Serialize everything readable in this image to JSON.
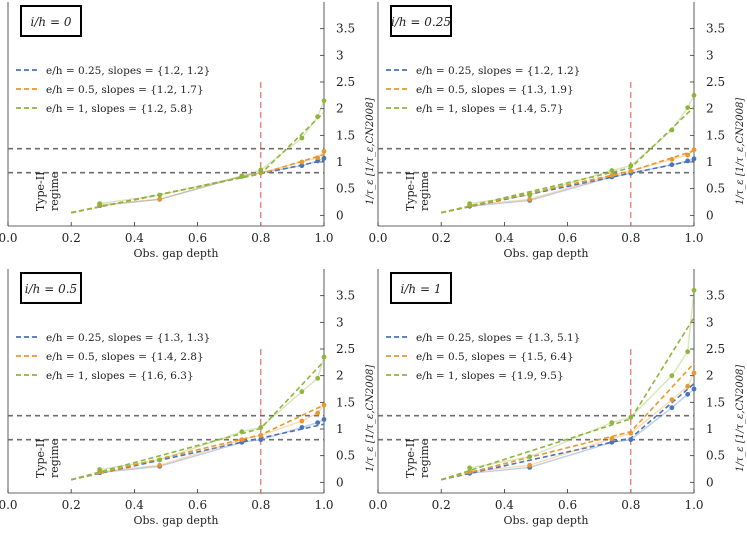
{
  "chart_data": [
    {
      "type": "line",
      "title": "i/h = 0",
      "xlabel": "Obs. gap depth",
      "ylabel": "1/τ_ε [1/τ_ε,CN2008]",
      "xlim": [
        0.0,
        1.0
      ],
      "ylim": [
        -0.2,
        4.0
      ],
      "xticks": [
        "0.0",
        "0.2",
        "0.4",
        "0.6",
        "0.8",
        "1.0"
      ],
      "yticks": [
        "0",
        "0.5",
        "1",
        "1.5",
        "2",
        "2.5",
        "3",
        "3.5"
      ],
      "regime_label": [
        "Type-II",
        "regime"
      ],
      "threshold_lines": [
        0.8,
        1.25
      ],
      "vertical_line": 0.8,
      "series": [
        {
          "name": "e/h = 0.25, slopes = {1.2, 1.2}",
          "color": "#4a74b8",
          "fit": [
            [
              0.2,
              0.05
            ],
            [
              0.8,
              0.78
            ],
            [
              1.0,
              1.03
            ]
          ],
          "points": [
            [
              0.29,
              0.18
            ],
            [
              0.48,
              0.3
            ],
            [
              0.74,
              0.73
            ],
            [
              0.8,
              0.8
            ],
            [
              0.93,
              0.93
            ],
            [
              0.98,
              1.02
            ],
            [
              1.0,
              1.07
            ]
          ]
        },
        {
          "name": "e/h = 0.5, slopes = {1.2, 1.7}",
          "color": "#e8982d",
          "fit": [
            [
              0.2,
              0.05
            ],
            [
              0.8,
              0.78
            ],
            [
              1.0,
              1.14
            ]
          ],
          "points": [
            [
              0.29,
              0.2
            ],
            [
              0.48,
              0.3
            ],
            [
              0.74,
              0.74
            ],
            [
              0.8,
              0.8
            ],
            [
              0.93,
              1.0
            ],
            [
              0.98,
              1.08
            ],
            [
              1.0,
              1.2
            ]
          ]
        },
        {
          "name": "e/h = 1, slopes = {1.2, 5.8}",
          "color": "#8db63c",
          "fit": [
            [
              0.2,
              0.05
            ],
            [
              0.8,
              0.78
            ],
            [
              1.0,
              1.93
            ]
          ],
          "points": [
            [
              0.29,
              0.22
            ],
            [
              0.48,
              0.38
            ],
            [
              0.74,
              0.73
            ],
            [
              0.8,
              0.85
            ],
            [
              0.93,
              1.45
            ],
            [
              0.98,
              1.85
            ],
            [
              1.0,
              2.15
            ]
          ]
        }
      ]
    },
    {
      "type": "line",
      "title": "i/h = 0.25",
      "xlabel": "Obs. gap depth",
      "ylabel": "1/τ_ε [1/τ_ε,CN2008]",
      "xlim": [
        0.0,
        1.0
      ],
      "ylim": [
        -0.2,
        4.0
      ],
      "xticks": [
        "0.0",
        "0.2",
        "0.4",
        "0.6",
        "0.8",
        "1.0"
      ],
      "yticks": [
        "0",
        "0.5",
        "1",
        "1.5",
        "2",
        "2.5",
        "3",
        "3.5"
      ],
      "regime_label": [
        "Type-II",
        "regime"
      ],
      "threshold_lines": [
        0.8,
        1.25
      ],
      "vertical_line": 0.8,
      "series": [
        {
          "name": "e/h = 0.25, slopes = {1.2, 1.2}",
          "color": "#4a74b8",
          "fit": [
            [
              0.2,
              0.05
            ],
            [
              0.8,
              0.79
            ],
            [
              1.0,
              1.03
            ]
          ],
          "points": [
            [
              0.29,
              0.17
            ],
            [
              0.48,
              0.28
            ],
            [
              0.74,
              0.72
            ],
            [
              0.8,
              0.79
            ],
            [
              0.93,
              0.95
            ],
            [
              0.98,
              1.02
            ],
            [
              1.0,
              1.06
            ]
          ]
        },
        {
          "name": "e/h = 0.5, slopes = {1.3, 1.9}",
          "color": "#e8982d",
          "fit": [
            [
              0.2,
              0.05
            ],
            [
              0.8,
              0.83
            ],
            [
              1.0,
              1.21
            ]
          ],
          "points": [
            [
              0.29,
              0.19
            ],
            [
              0.48,
              0.3
            ],
            [
              0.74,
              0.75
            ],
            [
              0.8,
              0.83
            ],
            [
              0.93,
              1.05
            ],
            [
              0.98,
              1.13
            ],
            [
              1.0,
              1.23
            ]
          ]
        },
        {
          "name": "e/h = 1, slopes = {1.4, 5.7}",
          "color": "#8db63c",
          "fit": [
            [
              0.2,
              0.05
            ],
            [
              0.8,
              0.89
            ],
            [
              1.0,
              2.03
            ]
          ],
          "points": [
            [
              0.29,
              0.22
            ],
            [
              0.48,
              0.38
            ],
            [
              0.74,
              0.84
            ],
            [
              0.8,
              0.93
            ],
            [
              0.93,
              1.6
            ],
            [
              0.98,
              2.02
            ],
            [
              1.0,
              2.25
            ]
          ]
        }
      ]
    },
    {
      "type": "line",
      "title": "i/h = 0.5",
      "xlabel": "Obs. gap depth",
      "ylabel": "1/τ_ε [1/τ_ε,CN2008]",
      "xlim": [
        0.0,
        1.0
      ],
      "ylim": [
        -0.2,
        4.0
      ],
      "xticks": [
        "0.0",
        "0.2",
        "0.4",
        "0.6",
        "0.8",
        "1.0"
      ],
      "yticks": [
        "0",
        "0.5",
        "1",
        "1.5",
        "2",
        "2.5",
        "3",
        "3.5"
      ],
      "regime_label": [
        "Type-II",
        "regime"
      ],
      "threshold_lines": [
        0.8,
        1.25
      ],
      "vertical_line": 0.8,
      "series": [
        {
          "name": "e/h = 0.25, slopes = {1.3, 1.3}",
          "color": "#4a74b8",
          "fit": [
            [
              0.2,
              0.05
            ],
            [
              0.8,
              0.83
            ],
            [
              1.0,
              1.09
            ]
          ],
          "points": [
            [
              0.29,
              0.18
            ],
            [
              0.48,
              0.3
            ],
            [
              0.74,
              0.75
            ],
            [
              0.8,
              0.8
            ],
            [
              0.93,
              1.03
            ],
            [
              0.98,
              1.12
            ],
            [
              1.0,
              1.18
            ]
          ]
        },
        {
          "name": "e/h = 0.5, slopes = {1.4, 2.8}",
          "color": "#e8982d",
          "fit": [
            [
              0.2,
              0.05
            ],
            [
              0.8,
              0.89
            ],
            [
              1.0,
              1.45
            ]
          ],
          "points": [
            [
              0.29,
              0.2
            ],
            [
              0.48,
              0.32
            ],
            [
              0.74,
              0.8
            ],
            [
              0.8,
              0.88
            ],
            [
              0.93,
              1.15
            ],
            [
              0.98,
              1.3
            ],
            [
              1.0,
              1.45
            ]
          ]
        },
        {
          "name": "e/h = 1, slopes = {1.6, 6.3}",
          "color": "#8db63c",
          "fit": [
            [
              0.2,
              0.05
            ],
            [
              0.8,
              1.01
            ],
            [
              1.0,
              2.27
            ]
          ],
          "points": [
            [
              0.29,
              0.24
            ],
            [
              0.48,
              0.42
            ],
            [
              0.74,
              0.95
            ],
            [
              0.8,
              1.03
            ],
            [
              0.93,
              1.7
            ],
            [
              0.98,
              1.95
            ],
            [
              1.0,
              2.35
            ]
          ]
        }
      ]
    },
    {
      "type": "line",
      "title": "i/h = 1",
      "xlabel": "Obs. gap depth",
      "ylabel": "1/τ_ε [1/τ_ε,CN2008]",
      "xlim": [
        0.0,
        1.0
      ],
      "ylim": [
        -0.2,
        4.0
      ],
      "xticks": [
        "0.0",
        "0.2",
        "0.4",
        "0.6",
        "0.8",
        "1.0"
      ],
      "yticks": [
        "0",
        "0.5",
        "1",
        "1.5",
        "2",
        "2.5",
        "3",
        "3.5"
      ],
      "regime_label": [
        "Type-II",
        "regime"
      ],
      "threshold_lines": [
        0.8,
        1.25
      ],
      "vertical_line": 0.8,
      "series": [
        {
          "name": "e/h = 0.25, slopes = {1.3, 5.1}",
          "color": "#4a74b8",
          "fit": [
            [
              0.2,
              0.05
            ],
            [
              0.8,
              0.83
            ],
            [
              1.0,
              1.85
            ]
          ],
          "points": [
            [
              0.29,
              0.17
            ],
            [
              0.48,
              0.28
            ],
            [
              0.74,
              0.75
            ],
            [
              0.8,
              0.8
            ],
            [
              0.93,
              1.4
            ],
            [
              0.98,
              1.65
            ],
            [
              1.0,
              1.75
            ]
          ]
        },
        {
          "name": "e/h = 0.5, slopes = {1.5, 6.4}",
          "color": "#e8982d",
          "fit": [
            [
              0.2,
              0.05
            ],
            [
              0.8,
              0.95
            ],
            [
              1.0,
              2.23
            ]
          ],
          "points": [
            [
              0.29,
              0.2
            ],
            [
              0.48,
              0.32
            ],
            [
              0.74,
              0.82
            ],
            [
              0.8,
              0.92
            ],
            [
              0.93,
              1.55
            ],
            [
              0.98,
              1.8
            ],
            [
              1.0,
              2.05
            ]
          ]
        },
        {
          "name": "e/h = 1, slopes = {1.9, 9.5}",
          "color": "#8db63c",
          "fit": [
            [
              0.2,
              0.05
            ],
            [
              0.8,
              1.19
            ],
            [
              1.0,
              3.09
            ]
          ],
          "points": [
            [
              0.29,
              0.27
            ],
            [
              0.48,
              0.48
            ],
            [
              0.74,
              1.12
            ],
            [
              0.8,
              1.22
            ],
            [
              0.93,
              2.0
            ],
            [
              0.98,
              2.45
            ],
            [
              1.0,
              3.6
            ]
          ]
        }
      ]
    }
  ]
}
